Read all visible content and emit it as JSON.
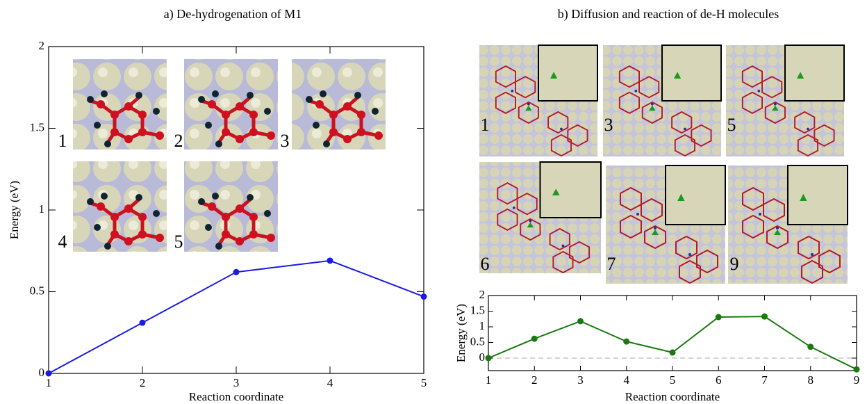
{
  "chart_data": [
    {
      "type": "line",
      "title": "a) De-hydrogenation of M1",
      "xlabel": "Reaction coordinate",
      "ylabel": "Energy (eV)",
      "x": [
        1,
        2,
        3,
        4,
        5
      ],
      "series": [
        {
          "name": "M1",
          "color": "#1a1ae6",
          "values": [
            0,
            0.31,
            0.62,
            0.69,
            0.47
          ]
        }
      ],
      "xlim": [
        1,
        5
      ],
      "xticks": [
        1,
        2,
        3,
        4,
        5
      ],
      "ylim": [
        0,
        2
      ],
      "yticks": [
        0,
        0.5,
        1,
        1.5,
        2
      ],
      "insets": [
        "1",
        "2",
        "3",
        "4",
        "5"
      ]
    },
    {
      "type": "line",
      "title": "b) Diffusion and reaction of de-H molecules",
      "xlabel": "Reaction coordinate",
      "ylabel": "Energy (eV)",
      "x": [
        1,
        2,
        3,
        4,
        5,
        6,
        7,
        8,
        9
      ],
      "series": [
        {
          "name": "de-H",
          "color": "#1a7a10",
          "values": [
            0,
            0.62,
            1.18,
            0.53,
            0.18,
            1.31,
            1.33,
            0.36,
            -0.36
          ]
        }
      ],
      "xlim": [
        1,
        9
      ],
      "xticks": [
        1,
        2,
        3,
        4,
        5,
        6,
        7,
        8,
        9
      ],
      "ylim": [
        -0.4,
        2
      ],
      "yticks": [
        0,
        0.5,
        1,
        1.5,
        2
      ],
      "hline": 0,
      "insets": [
        "1",
        "3",
        "5",
        "6",
        "7",
        "9"
      ]
    }
  ]
}
